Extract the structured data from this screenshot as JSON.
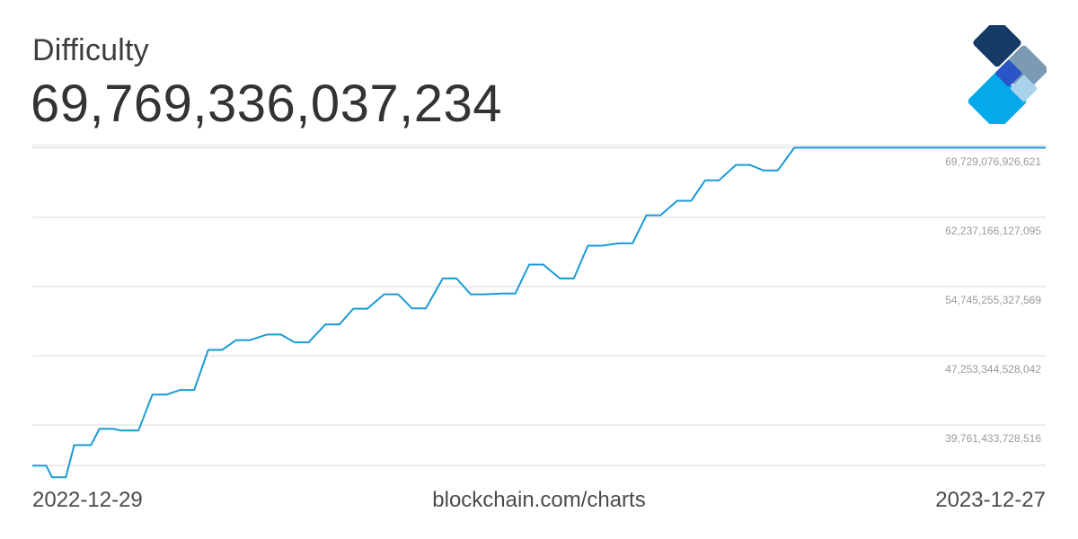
{
  "header": {
    "title": "Difficulty",
    "value": "69,769,336,037,234"
  },
  "footer": {
    "start_date": "2022-12-29",
    "source": "blockchain.com/charts",
    "end_date": "2023-12-27"
  },
  "colors": {
    "line": "#1a9ad6",
    "grid": "#d9d9d9",
    "tick_text": "#9a9a9a",
    "logo_dark": "#153a66",
    "logo_gray": "#7b9ab3",
    "logo_blue": "#2a55c6",
    "logo_cyan": "#03a9ea",
    "logo_light": "#a9d3ea"
  },
  "chart_data": {
    "type": "line",
    "title": "Difficulty",
    "xlabel": "",
    "ylabel": "",
    "x_range": [
      "2022-12-29",
      "2023-12-27"
    ],
    "ylim": [
      35400000000000,
      70000000000000
    ],
    "y_ticks": [
      {
        "value": 39761433728516,
        "label": "39,761,433,728,516"
      },
      {
        "value": 47253344528042,
        "label": "47,253,344,528,042"
      },
      {
        "value": 54745255327569,
        "label": "54,745,255,327,569"
      },
      {
        "value": 62237166127095,
        "label": "62,237,166,127,095"
      },
      {
        "value": 69729076926621,
        "label": "69,729,076,926,621"
      }
    ],
    "grid": true,
    "series": [
      {
        "x": [
          "2022-12-29",
          "2023-01-03",
          "2023-01-05",
          "2023-01-10",
          "2023-01-13",
          "2023-01-19",
          "2023-01-22",
          "2023-01-27",
          "2023-01-30",
          "2023-02-05",
          "2023-02-10",
          "2023-02-15",
          "2023-02-20",
          "2023-02-25",
          "2023-03-02",
          "2023-03-07",
          "2023-03-12",
          "2023-03-17",
          "2023-03-23",
          "2023-03-28",
          "2023-04-02",
          "2023-04-07",
          "2023-04-13",
          "2023-04-18",
          "2023-04-23",
          "2023-04-28",
          "2023-05-04",
          "2023-05-09",
          "2023-05-14",
          "2023-05-19",
          "2023-05-25",
          "2023-05-30",
          "2023-06-04",
          "2023-06-09",
          "2023-06-15",
          "2023-06-20",
          "2023-06-25",
          "2023-06-30",
          "2023-07-06",
          "2023-07-11",
          "2023-07-16",
          "2023-07-21",
          "2023-07-27",
          "2023-08-01",
          "2023-08-06",
          "2023-08-11",
          "2023-08-17",
          "2023-08-22",
          "2023-08-27",
          "2023-09-01",
          "2023-09-07",
          "2023-09-12",
          "2023-09-17",
          "2023-09-22",
          "2023-09-28",
          "2023-10-03",
          "2023-10-08",
          "2023-10-13",
          "2023-10-19",
          "2023-10-24",
          "2023-10-29",
          "2023-11-03",
          "2023-11-09",
          "2023-11-14",
          "2023-11-19",
          "2023-11-24",
          "2023-11-30",
          "2023-12-05",
          "2023-12-10",
          "2023-12-15",
          "2023-12-21",
          "2023-12-24",
          "2023-12-26",
          "2023-12-27"
        ],
        "values": [
          35360000000000,
          35360000000000,
          34120000000000,
          34120000000000,
          37590000000000,
          37590000000000,
          39350000000000,
          39350000000000,
          39160000000000,
          39160000000000,
          43050000000000,
          43050000000000,
          43550000000000,
          43550000000000,
          47890000000000,
          47890000000000,
          48950000000000,
          48950000000000,
          49550000000000,
          49550000000000,
          48710000000000,
          48710000000000,
          50650000000000,
          50650000000000,
          52350000000000,
          52350000000000,
          53910000000000,
          53910000000000,
          52390000000000,
          52390000000000,
          55620000000000,
          55620000000000,
          53910000000000,
          53910000000000,
          53990000000000,
          53990000000000,
          57120000000000,
          57120000000000,
          55620000000000,
          55620000000000,
          59160000000000,
          59160000000000,
          59420000000000,
          59420000000000,
          62460000000000,
          62460000000000,
          64020000000000,
          64020000000000,
          66230000000000,
          66230000000000,
          67900000000000,
          67900000000000,
          67300000000000,
          67300000000000,
          69769336037234,
          69769336037234,
          69769336037234,
          69769336037234,
          69769336037234,
          69769336037234,
          69769336037234,
          69769336037234,
          69769336037234,
          69769336037234,
          69769336037234,
          69769336037234,
          69769336037234,
          69769336037234,
          69769336037234,
          69769336037234,
          69769336037234,
          69769336037234,
          69769336037234,
          69769336037234
        ]
      }
    ]
  }
}
